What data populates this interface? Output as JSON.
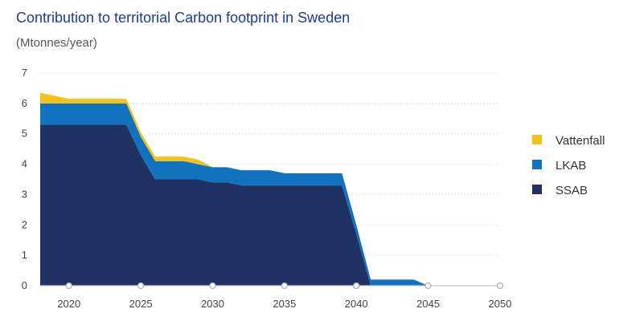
{
  "chart_data": {
    "type": "area",
    "stacked": true,
    "title": "Contribution to territorial Carbon footprint in Sweden",
    "ylabel": "(Mtonnes/year)",
    "xlabel": "",
    "ylim": [
      0,
      7
    ],
    "xlim": [
      2018,
      2050
    ],
    "grid": "dotted-horizontal",
    "xticks": [
      2020,
      2025,
      2030,
      2035,
      2040,
      2045,
      2050
    ],
    "yticks": [
      0,
      1,
      2,
      3,
      4,
      5,
      6,
      7
    ],
    "x": [
      2018,
      2019,
      2020,
      2021,
      2022,
      2023,
      2024,
      2025,
      2026,
      2027,
      2028,
      2029,
      2030,
      2031,
      2032,
      2033,
      2034,
      2035,
      2036,
      2037,
      2038,
      2039,
      2040,
      2041,
      2042,
      2043,
      2044,
      2045
    ],
    "series": [
      {
        "name": "SSAB",
        "color": "#1e3264",
        "values": [
          5.3,
          5.3,
          5.3,
          5.3,
          5.3,
          5.3,
          5.3,
          4.3,
          3.5,
          3.5,
          3.5,
          3.5,
          3.4,
          3.4,
          3.3,
          3.3,
          3.3,
          3.3,
          3.3,
          3.3,
          3.3,
          3.3,
          1.7,
          0.0,
          0.0,
          0.0,
          0.0,
          0.0
        ]
      },
      {
        "name": "LKAB",
        "color": "#1172bf",
        "values": [
          0.7,
          0.7,
          0.7,
          0.7,
          0.7,
          0.7,
          0.7,
          0.6,
          0.6,
          0.6,
          0.6,
          0.5,
          0.5,
          0.5,
          0.5,
          0.5,
          0.5,
          0.4,
          0.4,
          0.4,
          0.4,
          0.4,
          0.3,
          0.2,
          0.2,
          0.2,
          0.2,
          0.0
        ]
      },
      {
        "name": "Vattenfall",
        "color": "#f2c11b",
        "values": [
          0.35,
          0.25,
          0.15,
          0.15,
          0.15,
          0.15,
          0.15,
          0.15,
          0.15,
          0.15,
          0.15,
          0.15,
          0.0,
          0.0,
          0.0,
          0.0,
          0.0,
          0.0,
          0.0,
          0.0,
          0.0,
          0.0,
          0.0,
          0.0,
          0.0,
          0.0,
          0.0,
          0.0
        ]
      }
    ],
    "legend": {
      "position": "right",
      "items": [
        "Vattenfall",
        "LKAB",
        "SSAB"
      ]
    }
  }
}
